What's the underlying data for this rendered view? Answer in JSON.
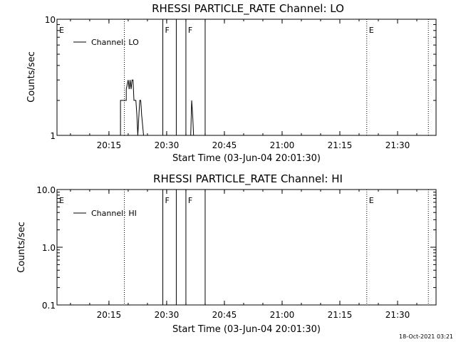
{
  "timestamp": "18-Oct-2021 03:21",
  "chart_data": [
    {
      "type": "line",
      "title": "RHESSI PARTICLE_RATE Channel: LO",
      "xlabel": "Start Time (03-Jun-04 20:01:30)",
      "ylabel": "Counts/sec",
      "yscale": "log",
      "ylim": [
        1,
        10
      ],
      "xlim": [
        "20:01:30",
        "21:40:00"
      ],
      "x_ticks": [
        "20:15",
        "20:30",
        "20:45",
        "21:00",
        "21:15",
        "21:30"
      ],
      "y_ticks": [
        "1",
        "10"
      ],
      "series": [
        {
          "name": "Channel: LO",
          "x": [
            "20:18:00",
            "20:18:00",
            "20:19:30",
            "20:19:30",
            "20:20:00",
            "20:20:15",
            "20:20:30",
            "20:20:45",
            "20:21:00",
            "20:21:15",
            "20:21:30",
            "20:22:00",
            "20:22:15",
            "20:22:30",
            "20:23:00",
            "20:23:15",
            "20:23:30",
            "20:24:00",
            "20:24:15",
            "20:24:30",
            "20:24:45",
            "20:25:00"
          ],
          "values": [
            1,
            2,
            2,
            2.5,
            3,
            2.5,
            3,
            2.5,
            3,
            3,
            2,
            2,
            1.5,
            1,
            2,
            2,
            1.5,
            1,
            1,
            1,
            1,
            1
          ]
        },
        {
          "name": "Channel: LO",
          "x": [
            "20:36:15",
            "20:36:30",
            "20:36:45",
            "20:37:00"
          ],
          "values": [
            1,
            2,
            1.5,
            1
          ]
        }
      ],
      "events": [
        {
          "label": "E",
          "time": "20:01:30",
          "style": "dotted"
        },
        {
          "label": "",
          "time": "20:19:00",
          "style": "dotted"
        },
        {
          "label": "F",
          "time": "20:29:00",
          "style": "solid"
        },
        {
          "label": "",
          "time": "20:32:30",
          "style": "solid"
        },
        {
          "label": "F",
          "time": "20:35:00",
          "style": "solid"
        },
        {
          "label": "",
          "time": "20:40:00",
          "style": "solid"
        },
        {
          "label": "E",
          "time": "21:22:00",
          "style": "dotted"
        },
        {
          "label": "",
          "time": "21:38:00",
          "style": "dotted"
        }
      ],
      "legend_label": "Channel: LO",
      "legend_position": "top-left"
    },
    {
      "type": "line",
      "title": "RHESSI PARTICLE_RATE Channel: HI",
      "xlabel": "Start Time (03-Jun-04 20:01:30)",
      "ylabel": "Counts/sec",
      "yscale": "log",
      "ylim": [
        0.1,
        10
      ],
      "xlim": [
        "20:01:30",
        "21:40:00"
      ],
      "x_ticks": [
        "20:15",
        "20:30",
        "20:45",
        "21:00",
        "21:15",
        "21:30"
      ],
      "y_ticks": [
        "0.1",
        "1.0",
        "10.0"
      ],
      "series": [],
      "events": [
        {
          "label": "E",
          "time": "20:01:30",
          "style": "dotted"
        },
        {
          "label": "",
          "time": "20:19:00",
          "style": "dotted"
        },
        {
          "label": "F",
          "time": "20:29:00",
          "style": "solid"
        },
        {
          "label": "",
          "time": "20:32:30",
          "style": "solid"
        },
        {
          "label": "F",
          "time": "20:35:00",
          "style": "solid"
        },
        {
          "label": "",
          "time": "20:40:00",
          "style": "solid"
        },
        {
          "label": "E",
          "time": "21:22:00",
          "style": "dotted"
        },
        {
          "label": "",
          "time": "21:38:00",
          "style": "dotted"
        }
      ],
      "legend_label": "Channel: HI",
      "legend_position": "top-left"
    }
  ]
}
